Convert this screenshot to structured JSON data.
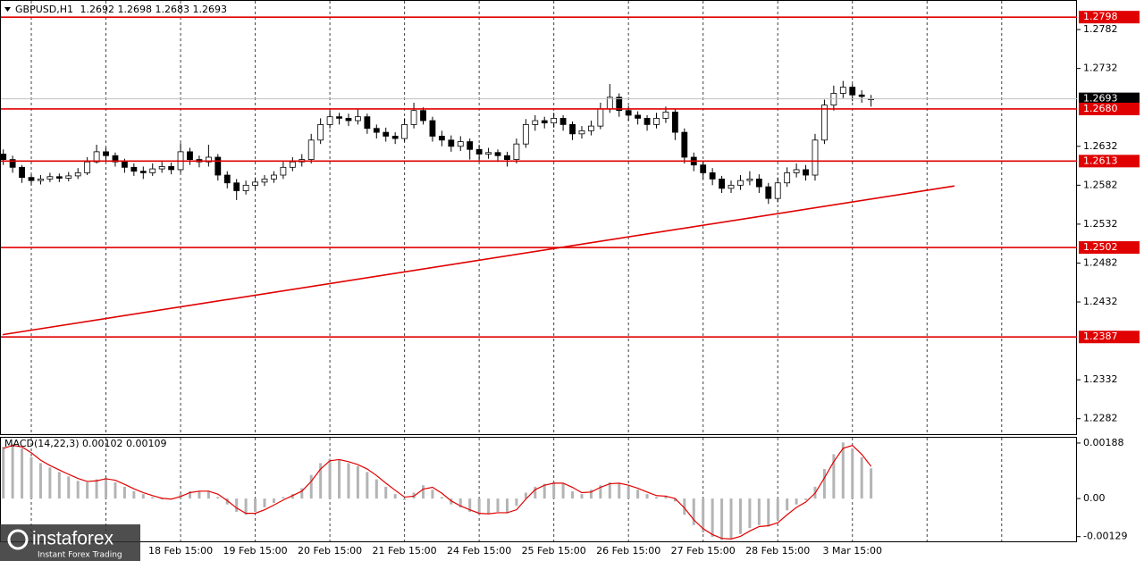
{
  "chart_data": [
    {
      "type": "candlestick",
      "symbol": "GBPUSD,H1",
      "x": [
        -9,
        -6,
        -3,
        0,
        3,
        6,
        9,
        12,
        15,
        18,
        21,
        24,
        27,
        30,
        33,
        36,
        39,
        42,
        45,
        48,
        51,
        54,
        57,
        60,
        63,
        66,
        69,
        72,
        75,
        78,
        81,
        84,
        87,
        90,
        93,
        96,
        99,
        102,
        105,
        108,
        111,
        114,
        117,
        120,
        123,
        126,
        129,
        132,
        135,
        138,
        141,
        144,
        147,
        150,
        153,
        156,
        159,
        162,
        165,
        168,
        171,
        174,
        177,
        180,
        183,
        186,
        189,
        192,
        195,
        198,
        201,
        204,
        207,
        210,
        213,
        216,
        219,
        222,
        225,
        228,
        231,
        234,
        237,
        240,
        243,
        246,
        249,
        252,
        255,
        258,
        261,
        264,
        267,
        270
      ],
      "open": [
        1.2622,
        1.2615,
        1.2605,
        1.2592,
        1.2588,
        1.259,
        1.2593,
        1.2591,
        1.2594,
        1.2598,
        1.2612,
        1.2625,
        1.262,
        1.2612,
        1.2605,
        1.26,
        1.2598,
        1.2603,
        1.2606,
        1.2602,
        1.2625,
        1.2615,
        1.2612,
        1.2618,
        1.2595,
        1.2585,
        1.2575,
        1.2582,
        1.2586,
        1.259,
        1.2595,
        1.2605,
        1.2612,
        1.2615,
        1.264,
        1.266,
        1.267,
        1.2668,
        1.2665,
        1.267,
        1.2655,
        1.265,
        1.2645,
        1.2642,
        1.266,
        1.2678,
        1.2665,
        1.2645,
        1.264,
        1.2632,
        1.2638,
        1.2628,
        1.2622,
        1.2624,
        1.262,
        1.2615,
        1.2635,
        1.266,
        1.2665,
        1.2662,
        1.2668,
        1.266,
        1.2648,
        1.2652,
        1.2658,
        1.268,
        1.2695,
        1.2678,
        1.2672,
        1.2668,
        1.266,
        1.2668,
        1.2676,
        1.265,
        1.2618,
        1.2608,
        1.2598,
        1.259,
        1.2578,
        1.2582,
        1.2588,
        1.259,
        1.258,
        1.2565,
        1.2585,
        1.2598,
        1.2602,
        1.2595,
        1.264,
        1.2685,
        1.27,
        1.2708,
        1.2698,
        1.2692
      ],
      "high": [
        1.2628,
        1.262,
        1.2608,
        1.2596,
        1.2595,
        1.2598,
        1.2597,
        1.2599,
        1.2604,
        1.2618,
        1.2634,
        1.263,
        1.2624,
        1.2616,
        1.261,
        1.2606,
        1.261,
        1.2612,
        1.2611,
        1.2636,
        1.263,
        1.262,
        1.2634,
        1.2622,
        1.26,
        1.259,
        1.2588,
        1.2592,
        1.2595,
        1.26,
        1.2612,
        1.2618,
        1.2622,
        1.2648,
        1.2668,
        1.2678,
        1.2675,
        1.2674,
        1.268,
        1.2674,
        1.266,
        1.2656,
        1.265,
        1.2668,
        1.2688,
        1.2682,
        1.267,
        1.2652,
        1.2646,
        1.2645,
        1.2642,
        1.2634,
        1.263,
        1.2628,
        1.2625,
        1.2642,
        1.2667,
        1.2672,
        1.267,
        1.2675,
        1.2672,
        1.2664,
        1.2658,
        1.2665,
        1.2688,
        1.2712,
        1.27,
        1.2684,
        1.2677,
        1.2672,
        1.2675,
        1.2683,
        1.268,
        1.2655,
        1.2624,
        1.2613,
        1.2604,
        1.2594,
        1.2588,
        1.2595,
        1.26,
        1.2596,
        1.2585,
        1.2592,
        1.2605,
        1.261,
        1.2608,
        1.2648,
        1.2692,
        1.271,
        1.2716,
        1.2712,
        1.2704,
        1.2698
      ],
      "low": [
        1.2608,
        1.2598,
        1.2585,
        1.2582,
        1.2583,
        1.2586,
        1.2586,
        1.2587,
        1.259,
        1.2595,
        1.261,
        1.2614,
        1.2606,
        1.2598,
        1.2594,
        1.259,
        1.2594,
        1.2598,
        1.2596,
        1.2598,
        1.2608,
        1.2605,
        1.2606,
        1.2588,
        1.2578,
        1.2563,
        1.257,
        1.2577,
        1.2581,
        1.2585,
        1.259,
        1.26,
        1.2606,
        1.261,
        1.2635,
        1.2655,
        1.266,
        1.2658,
        1.266,
        1.2648,
        1.2642,
        1.2638,
        1.2635,
        1.2638,
        1.2655,
        1.266,
        1.2638,
        1.2632,
        1.2625,
        1.2626,
        1.2615,
        1.2614,
        1.2616,
        1.2612,
        1.2606,
        1.261,
        1.263,
        1.2652,
        1.2655,
        1.2656,
        1.2652,
        1.264,
        1.2642,
        1.2646,
        1.2654,
        1.2675,
        1.267,
        1.2665,
        1.266,
        1.2652,
        1.2655,
        1.2662,
        1.264,
        1.261,
        1.26,
        1.259,
        1.2582,
        1.2572,
        1.2572,
        1.2576,
        1.2582,
        1.2572,
        1.2558,
        1.256,
        1.258,
        1.2592,
        1.2588,
        1.2588,
        1.2635,
        1.2678,
        1.2694,
        1.269,
        1.2688,
        1.2683
      ],
      "close": [
        1.2615,
        1.2605,
        1.2592,
        1.2588,
        1.259,
        1.2593,
        1.2591,
        1.2594,
        1.2598,
        1.2612,
        1.2625,
        1.262,
        1.2612,
        1.2605,
        1.26,
        1.2598,
        1.2603,
        1.2606,
        1.2602,
        1.2625,
        1.2615,
        1.2612,
        1.2618,
        1.2595,
        1.2585,
        1.2575,
        1.2582,
        1.2586,
        1.259,
        1.2595,
        1.2605,
        1.2612,
        1.2615,
        1.264,
        1.266,
        1.267,
        1.2668,
        1.2665,
        1.267,
        1.2655,
        1.265,
        1.2645,
        1.2642,
        1.266,
        1.2678,
        1.2665,
        1.2645,
        1.264,
        1.2632,
        1.2638,
        1.2628,
        1.2622,
        1.2624,
        1.262,
        1.2615,
        1.2635,
        1.266,
        1.2665,
        1.2662,
        1.2668,
        1.266,
        1.2648,
        1.2652,
        1.2658,
        1.268,
        1.2695,
        1.2678,
        1.2672,
        1.2668,
        1.266,
        1.2668,
        1.2676,
        1.265,
        1.2618,
        1.2608,
        1.2598,
        1.259,
        1.2578,
        1.2582,
        1.2588,
        1.259,
        1.258,
        1.2565,
        1.2585,
        1.2598,
        1.2602,
        1.2595,
        1.264,
        1.2685,
        1.27,
        1.2708,
        1.2698,
        1.2696,
        1.2693
      ],
      "up_color": "#ffffff",
      "down_color": "#000000",
      "xlim": [
        -10.06,
        336.2
      ],
      "ylim": [
        1.2261,
        1.282
      ],
      "yticks": [
        1.2282,
        1.2332,
        1.2432,
        1.2482,
        1.2532,
        1.2582,
        1.2632,
        1.2732,
        1.2782
      ],
      "xticks": [
        {
          "value": 0,
          "label": null
        },
        {
          "value": 24,
          "label": null
        },
        {
          "value": 48,
          "label": "18 Feb 15:00"
        },
        {
          "value": 72,
          "label": "19 Feb 15:00"
        },
        {
          "value": 96,
          "label": "20 Feb 15:00"
        },
        {
          "value": 120,
          "label": "21 Feb 15:00"
        },
        {
          "value": 144,
          "label": "24 Feb 15:00"
        },
        {
          "value": 168,
          "label": "25 Feb 15:00"
        },
        {
          "value": 192,
          "label": "26 Feb 15:00"
        },
        {
          "value": 216,
          "label": "27 Feb 15:00"
        },
        {
          "value": 240,
          "label": "28 Feb 15:00"
        },
        {
          "value": 264,
          "label": "3 Mar 15:00"
        },
        {
          "value": 288,
          "label": null
        },
        {
          "value": 312,
          "label": null
        }
      ],
      "grid": "x",
      "levels": {
        "color": "#e00000",
        "values": [
          1.2798,
          {
            "value": 1.268,
            "label": "1.2680"
          },
          1.2613,
          1.2502,
          1.2387
        ]
      },
      "trendline": {
        "color": "#e00000",
        "x": [
          -9.2,
          296.8
        ],
        "y": [
          1.239,
          1.2581
        ]
      },
      "current_price_color": "#c0c0c0"
    },
    {
      "type": "macd",
      "title": "MACD(14,22,3)",
      "x": [
        -9,
        -6,
        -3,
        0,
        3,
        6,
        9,
        12,
        15,
        18,
        21,
        24,
        27,
        30,
        33,
        36,
        39,
        42,
        45,
        48,
        51,
        54,
        57,
        60,
        63,
        66,
        69,
        72,
        75,
        78,
        81,
        84,
        87,
        90,
        93,
        96,
        99,
        102,
        105,
        108,
        111,
        114,
        117,
        120,
        123,
        126,
        129,
        132,
        135,
        138,
        141,
        144,
        147,
        150,
        153,
        156,
        159,
        162,
        165,
        168,
        171,
        174,
        177,
        180,
        183,
        186,
        189,
        192,
        195,
        198,
        201,
        204,
        207,
        210,
        213,
        216,
        219,
        222,
        225,
        228,
        231,
        234,
        237,
        240,
        243,
        246,
        249,
        252,
        255,
        258,
        261,
        264,
        267,
        270
      ],
      "histogram": {
        "color": "#b4b4b4",
        "values": [
          0.00175,
          0.00185,
          0.0017,
          0.0014,
          0.0012,
          0.00105,
          0.0009,
          0.00075,
          0.0006,
          0.00055,
          0.00065,
          0.0007,
          0.00055,
          0.0004,
          0.00025,
          0.00015,
          5e-05,
          -3e-05,
          -2e-05,
          0.00015,
          0.00025,
          0.00025,
          0.00025,
          5e-05,
          -0.0002,
          -0.00045,
          -0.00055,
          -0.00045,
          -0.0003,
          -0.00015,
          5e-05,
          0.00015,
          0.00035,
          0.0008,
          0.0012,
          0.00135,
          0.0013,
          0.0012,
          0.0011,
          0.0009,
          0.00065,
          0.0004,
          0.00015,
          -5e-05,
          0.0002,
          0.00045,
          0.0003,
          5e-05,
          -0.0002,
          -0.0003,
          -0.00045,
          -0.00055,
          -0.0005,
          -0.00045,
          -0.0005,
          -0.00025,
          0.0002,
          0.0004,
          0.0005,
          0.00055,
          0.0005,
          0.00025,
          0.00015,
          0.0003,
          0.00045,
          0.00055,
          0.0005,
          0.0004,
          0.0003,
          0.00015,
          5e-05,
          0.0001,
          -0.0001,
          -0.00055,
          -0.0009,
          -0.00115,
          -0.0013,
          -0.0014,
          -0.00135,
          -0.0012,
          -0.001,
          -0.0009,
          -0.00095,
          -0.0007,
          -0.0004,
          -0.0002,
          -5e-05,
          0.0004,
          0.001,
          0.0015,
          0.0019,
          0.0017,
          0.0014,
          0.00102
        ]
      },
      "signal": {
        "color": "#e00000",
        "values": [
          0.0017,
          0.0018,
          0.00175,
          0.00155,
          0.0013,
          0.00112,
          0.00097,
          0.00082,
          0.00068,
          0.00058,
          0.0006,
          0.00067,
          0.00062,
          0.00048,
          0.00033,
          0.0002,
          0.0001,
          1e-05,
          -2e-05,
          7e-05,
          0.0002,
          0.00025,
          0.00025,
          0.00015,
          -7e-05,
          -0.00032,
          -0.0005,
          -0.0005,
          -0.00038,
          -0.00022,
          -5e-05,
          0.0001,
          0.00025,
          0.00058,
          0.001,
          0.00128,
          0.00132,
          0.00125,
          0.00115,
          0.001,
          0.00078,
          0.00052,
          0.00028,
          5e-05,
          8e-05,
          0.00032,
          0.00038,
          0.00018,
          -8e-05,
          -0.00025,
          -0.00038,
          -0.0005,
          -0.00052,
          -0.00048,
          -0.00048,
          -0.00038,
          -2e-05,
          0.0003,
          0.00045,
          0.00052,
          0.00052,
          0.00038,
          0.0002,
          0.00022,
          0.00038,
          0.0005,
          0.00052,
          0.00045,
          0.00035,
          0.00022,
          0.0001,
          8e-05,
          0,
          -0.00032,
          -0.00072,
          -0.00102,
          -0.00122,
          -0.00135,
          -0.00137,
          -0.00128,
          -0.0011,
          -0.00095,
          -0.00092,
          -0.00082,
          -0.00055,
          -0.0003,
          -0.00012,
          0.00018,
          0.0007,
          0.00125,
          0.0017,
          0.0018,
          0.0015,
          0.00109
        ]
      },
      "ylim": [
        -0.00148,
        0.00206
      ],
      "yticks": [
        0.00188,
        {
          "value": 0,
          "label": "0.00"
        },
        -0.00129
      ]
    }
  ],
  "logo": {
    "name": "instaforex",
    "tagline": "Instant Forex Trading"
  }
}
